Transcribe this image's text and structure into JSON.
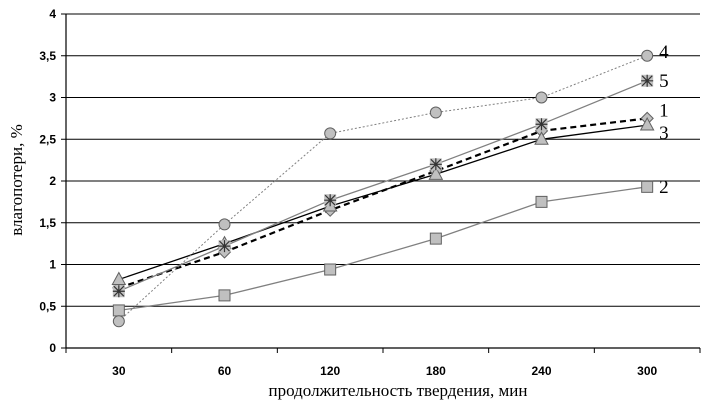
{
  "chart_data": {
    "type": "line",
    "x": [
      "30",
      "60",
      "120",
      "180",
      "240",
      "300"
    ],
    "xlabel": "продолжительность твердения, мин",
    "ylabel": "влагопотери, %",
    "ylim": [
      0,
      4
    ],
    "yticks": [
      "0",
      "0,5",
      "1",
      "1,5",
      "2",
      "2,5",
      "3",
      "3,5",
      "4"
    ],
    "grid": "horizontal",
    "series": [
      {
        "name": "1",
        "marker": "diamond",
        "line": "dashed-bold",
        "color": "#000000",
        "values": [
          0.72,
          1.15,
          1.65,
          2.12,
          2.6,
          2.75
        ]
      },
      {
        "name": "2",
        "marker": "square",
        "line": "solid",
        "color": "#808080",
        "values": [
          0.45,
          0.63,
          0.94,
          1.31,
          1.75,
          1.93
        ]
      },
      {
        "name": "3",
        "marker": "triangle",
        "line": "solid",
        "color": "#000000",
        "values": [
          0.82,
          1.25,
          1.7,
          2.08,
          2.5,
          2.67
        ]
      },
      {
        "name": "4",
        "marker": "circle",
        "line": "dotted",
        "color": "#808080",
        "values": [
          0.32,
          1.48,
          2.57,
          2.82,
          3.0,
          3.5
        ]
      },
      {
        "name": "5",
        "marker": "asterisk",
        "line": "solid",
        "color": "#808080",
        "values": [
          0.68,
          1.22,
          1.77,
          2.2,
          2.68,
          3.2
        ]
      }
    ]
  }
}
